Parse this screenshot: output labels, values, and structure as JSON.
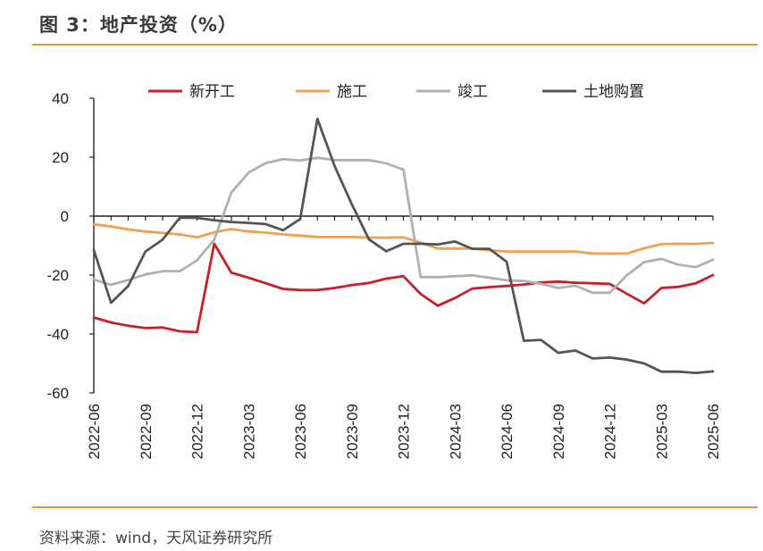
{
  "header": {
    "title": "图 3：地产投资（%）"
  },
  "footer": {
    "source": "资料来源：wind，天风证券研究所"
  },
  "chart_data": {
    "type": "line",
    "title": "图 3：地产投资（%）",
    "ylim": [
      -60,
      40
    ],
    "yticks": [
      40,
      20,
      0,
      -20,
      -40,
      -60
    ],
    "xtick_labels": [
      "2022-06",
      "2022-09",
      "2022-12",
      "2023-03",
      "2023-06",
      "2023-09",
      "2023-12",
      "2024-03",
      "2024-06",
      "2024-09",
      "2024-12",
      "2025-03",
      "2025-06"
    ],
    "x": [
      "2022-06",
      "2022-07",
      "2022-08",
      "2022-09",
      "2022-10",
      "2022-11",
      "2022-12",
      "2023-01",
      "2023-02",
      "2023-03",
      "2023-04",
      "2023-05",
      "2023-06",
      "2023-07",
      "2023-08",
      "2023-09",
      "2023-10",
      "2023-11",
      "2023-12",
      "2024-01",
      "2024-02",
      "2024-03",
      "2024-04",
      "2024-05",
      "2024-06",
      "2024-07",
      "2024-08",
      "2024-09",
      "2024-10",
      "2024-11",
      "2024-12",
      "2025-01",
      "2025-02",
      "2025-03",
      "2025-04",
      "2025-05",
      "2025-06"
    ],
    "grid": false,
    "legend_position": "top",
    "series": [
      {
        "name": "新开工",
        "color": "#c8202a",
        "values": [
          -34.4,
          -36.1,
          -37.2,
          -38.0,
          -37.8,
          -39.1,
          -39.4,
          -9.4,
          -19.2,
          -20.9,
          -22.8,
          -24.7,
          -25.1,
          -25.1,
          -24.4,
          -23.4,
          -22.7,
          -21.2,
          -20.4,
          -26.4,
          -30.4,
          -27.8,
          -24.6,
          -24.1,
          -23.7,
          -23.2,
          -22.5,
          -22.2,
          -22.6,
          -22.8,
          -23.0,
          -26.4,
          -29.6,
          -24.4,
          -24.0,
          -22.8,
          -20.0
        ]
      },
      {
        "name": "施工",
        "color": "#f0a050",
        "values": [
          -2.8,
          -3.5,
          -4.5,
          -5.2,
          -5.7,
          -6.2,
          -7.2,
          -5.5,
          -4.4,
          -5.2,
          -5.6,
          -6.2,
          -6.6,
          -7.1,
          -7.1,
          -7.1,
          -7.3,
          -7.3,
          -7.2,
          -9.0,
          -11.0,
          -11.0,
          -11.0,
          -11.6,
          -12.0,
          -12.0,
          -12.0,
          -12.0,
          -12.0,
          -12.7,
          -12.7,
          -12.7,
          -10.9,
          -9.5,
          -9.4,
          -9.4,
          -9.1
        ]
      },
      {
        "name": "竣工",
        "color": "#b0b0b0",
        "values": [
          -21.5,
          -23.3,
          -21.7,
          -19.8,
          -18.7,
          -18.7,
          -15.0,
          -8.0,
          8.0,
          14.8,
          18.0,
          19.3,
          18.9,
          19.8,
          19.0,
          19.0,
          19.0,
          17.9,
          15.8,
          -20.7,
          -20.7,
          -20.4,
          -20.1,
          -20.9,
          -21.8,
          -22.0,
          -23.0,
          -24.4,
          -23.6,
          -26.0,
          -26.0,
          -20.0,
          -15.6,
          -14.5,
          -16.5,
          -17.3,
          -14.8
        ]
      },
      {
        "name": "土地购置",
        "color": "#555555",
        "values": [
          -11.5,
          -29.4,
          -23.7,
          -12.0,
          -8.0,
          -0.5,
          -0.6,
          -1.4,
          -2.0,
          -2.3,
          -2.7,
          -4.8,
          -1.0,
          33.0,
          17.0,
          4.0,
          -7.9,
          -11.9,
          -9.4,
          -9.4,
          -9.6,
          -8.6,
          -11.1,
          -11.1,
          -15.5,
          -42.3,
          -42.0,
          -46.4,
          -45.6,
          -48.3,
          -48.0,
          -48.7,
          -50.0,
          -52.8,
          -52.8,
          -53.2,
          -52.7
        ]
      }
    ]
  }
}
